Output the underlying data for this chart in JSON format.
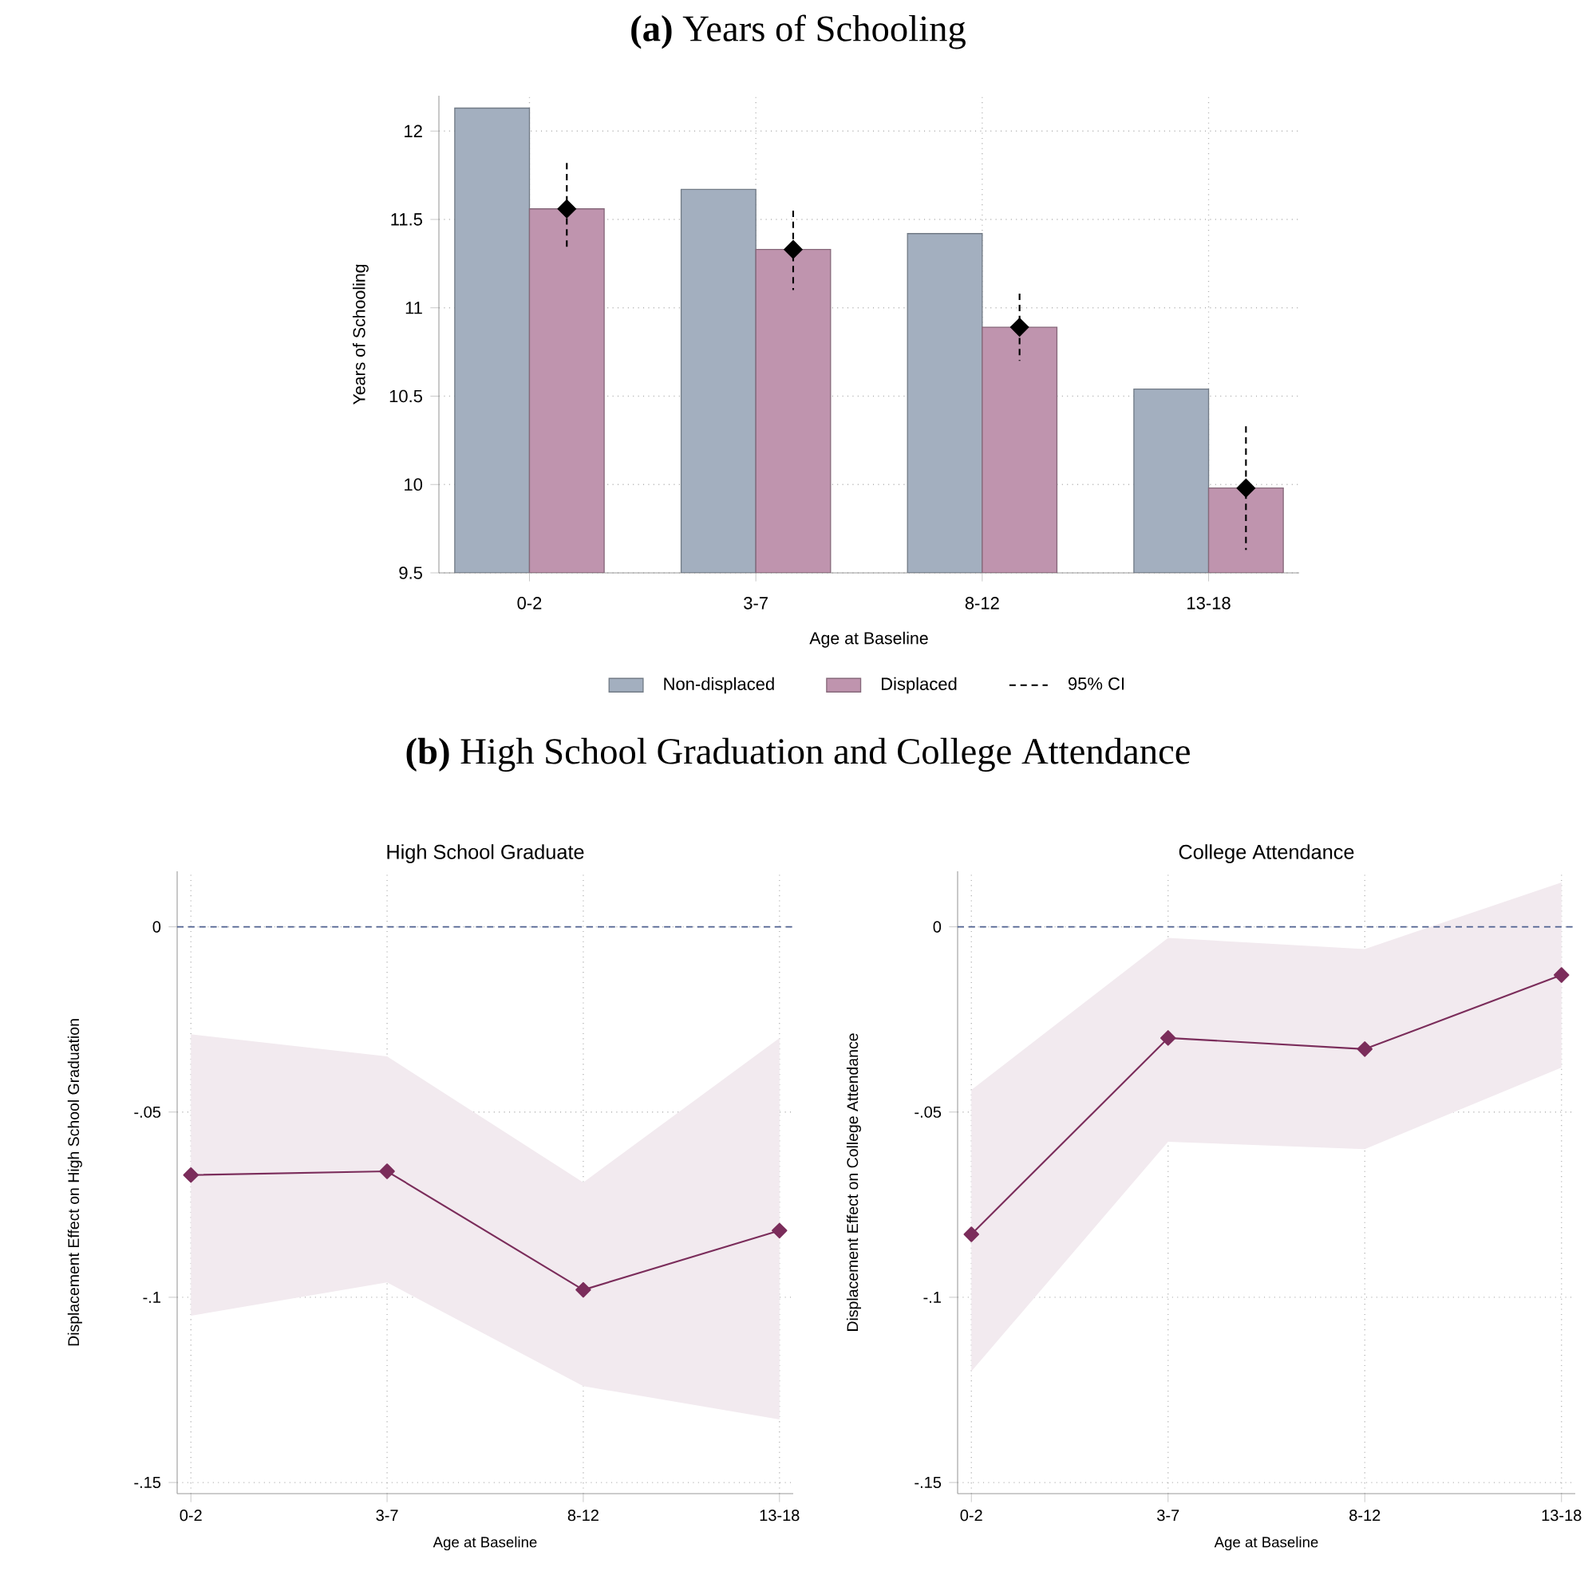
{
  "chart_data": [
    {
      "type": "bar",
      "title": "**(a)** Years of Schooling",
      "xlabel": "Age at Baseline",
      "ylabel": "Years of Schooling",
      "categories": [
        "0-2",
        "3-7",
        "8-12",
        "13-18"
      ],
      "series": [
        {
          "name": "Non-displaced",
          "color": "#a3afbf",
          "values": [
            12.13,
            11.67,
            11.42,
            10.54
          ]
        },
        {
          "name": "Displaced",
          "color": "#bf94ae",
          "values": [
            11.56,
            11.33,
            10.89,
            9.98
          ]
        },
        {
          "name": "95% CI",
          "type": "scatter",
          "color": "#000000",
          "values": [
            11.56,
            11.33,
            10.89,
            9.98
          ],
          "errors": [
            [
              11.32,
              11.82
            ],
            [
              11.1,
              11.55
            ],
            [
              10.7,
              11.08
            ],
            [
              9.63,
              10.33
            ]
          ],
          "marker": "diamond",
          "line_style": "dashed"
        }
      ],
      "ylim": [
        9.5,
        12.2
      ],
      "yticks": [
        9.5,
        10,
        10.5,
        11,
        11.5,
        12
      ],
      "grid": true,
      "legend": "bottom"
    },
    {
      "type": "line",
      "title": "**(b)** High School Graduation and College Attendance",
      "subtitle": "High School Graduate",
      "xlabel": "Age at Baseline",
      "ylabel": "Displacement Effect on High School Graduation",
      "categories": [
        "0-2",
        "3-7",
        "8-12",
        "13-18"
      ],
      "series": [
        {
          "color": "#7b2d5b",
          "values": [
            -0.067,
            -0.066,
            -0.098,
            -0.082
          ],
          "lower": [
            -0.105,
            -0.096,
            -0.124,
            -0.133
          ],
          "upper": [
            -0.029,
            -0.035,
            -0.069,
            -0.03
          ]
        }
      ],
      "ylim": [
        -0.153,
        0.015
      ],
      "yticks": [
        {
          "value": -0.15,
          "label": "-.15"
        },
        {
          "value": -0.1,
          "label": "-.1"
        },
        {
          "value": -0.05,
          "label": "-.05"
        },
        0
      ],
      "ref_lines": [
        {
          "axis": "y",
          "value": 0,
          "color": "#4f6190",
          "line_style": "dashed"
        }
      ],
      "grid": true,
      "marker": "diamond",
      "line_style": "solid"
    },
    {
      "type": "line",
      "subtitle": "College Attendance",
      "xlabel": "Age at Baseline",
      "ylabel": "Displacement Effect on College Attendance",
      "categories": [
        "0-2",
        "3-7",
        "8-12",
        "13-18"
      ],
      "series": [
        {
          "color": "#7b2d5b",
          "values": [
            -0.083,
            -0.03,
            -0.033,
            -0.013
          ],
          "lower": [
            -0.12,
            -0.058,
            -0.06,
            -0.038
          ],
          "upper": [
            -0.044,
            -0.003,
            -0.006,
            0.012
          ]
        }
      ],
      "ylim": [
        -0.153,
        0.015
      ],
      "yticks": [
        {
          "value": -0.15,
          "label": "-.15"
        },
        {
          "value": -0.1,
          "label": "-.1"
        },
        {
          "value": -0.05,
          "label": "-.05"
        },
        0
      ],
      "ref_lines": [
        {
          "axis": "y",
          "value": 0,
          "color": "#4f6190",
          "line_style": "dashed"
        }
      ],
      "grid": true,
      "marker": "diamond",
      "line_style": "solid"
    }
  ]
}
